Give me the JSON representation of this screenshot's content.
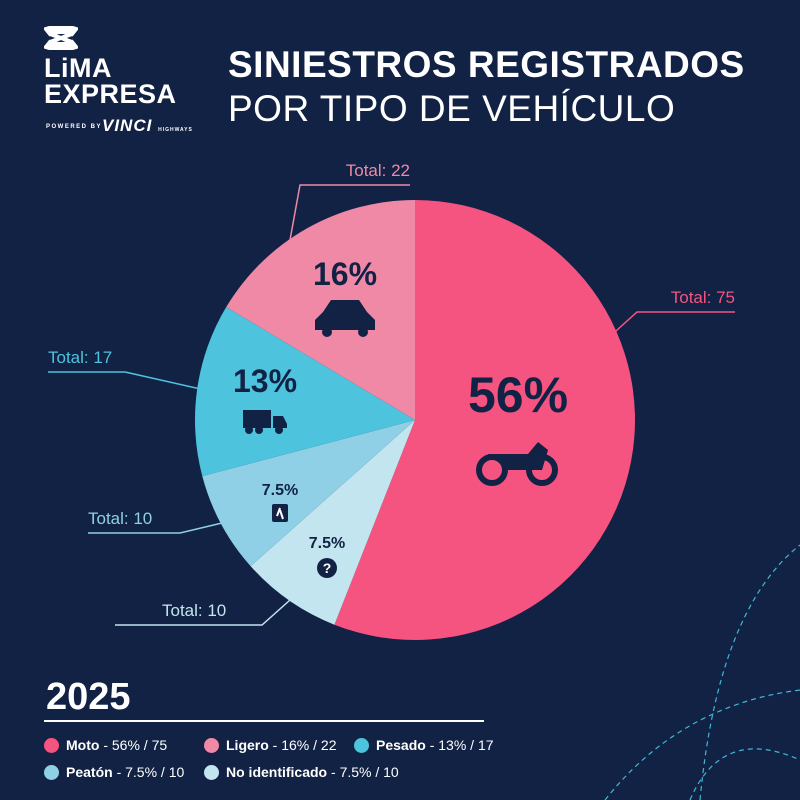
{
  "brand": {
    "name_line1": "LiMA",
    "name_line2": "EXPRESA",
    "powered": "POWERED BY",
    "partner": "VINCI",
    "partner_sub": "HIGHWAYS"
  },
  "title": {
    "line1": "SINIESTROS REGISTRADOS",
    "line2": "POR TIPO DE VEHÍCULO"
  },
  "year": "2025",
  "chart_data": {
    "type": "pie",
    "slices": [
      {
        "name": "Moto",
        "value": 75,
        "percent_label": "56%",
        "total_label": "Total: 75",
        "icon": "motorcycle-icon",
        "color": "#f55480",
        "legend": " - 56% / 75"
      },
      {
        "name": "No identificado",
        "value": 10,
        "percent_label": "7.5%",
        "total_label": "Total: 10",
        "icon": "question-icon",
        "color": "#c2e5f0",
        "legend": " - 7.5% / 10"
      },
      {
        "name": "Peatón",
        "value": 10,
        "percent_label": "7.5%",
        "total_label": "Total: 10",
        "icon": "pedestrian-icon",
        "color": "#8fd0e6",
        "legend": " - 7.5% / 10"
      },
      {
        "name": "Pesado",
        "value": 17,
        "percent_label": "13%",
        "total_label": "Total: 17",
        "icon": "truck-icon",
        "color": "#4ec3dd",
        "legend": " - 13% / 17"
      },
      {
        "name": "Ligero",
        "value": 22,
        "percent_label": "16%",
        "total_label": "Total: 22",
        "icon": "car-icon",
        "color": "#ef89a6",
        "legend": " - 16% / 22"
      }
    ],
    "start": "top",
    "direction": "clockwise"
  },
  "legend_order": [
    0,
    4,
    3,
    2,
    1
  ]
}
